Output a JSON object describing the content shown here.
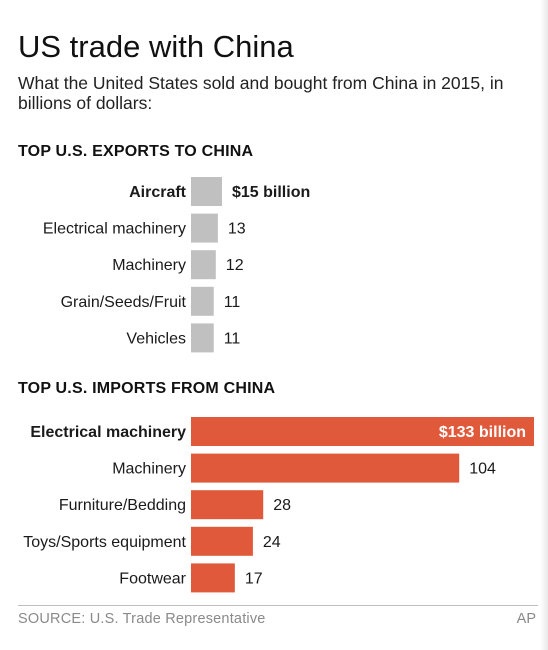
{
  "title": "US trade with China",
  "subtitle": "What the United States sold and bought from China in 2015, in billions of dollars:",
  "source": "SOURCE: U.S. Trade Representative",
  "credit": "AP",
  "chart_data": [
    {
      "type": "bar",
      "orientation": "horizontal",
      "title": "TOP U.S. EXPORTS TO CHINA",
      "categories": [
        "Aircraft",
        "Electrical machinery",
        "Machinery",
        "Grain/Seeds/Fruit",
        "Vehicles"
      ],
      "values": [
        15,
        13,
        12,
        11,
        11
      ],
      "value_labels": [
        "$15 billion",
        "13",
        "12",
        "11",
        "11"
      ],
      "unit": "billions of dollars",
      "color": "#c0c0c0",
      "grid": false,
      "highlight_first": true
    },
    {
      "type": "bar",
      "orientation": "horizontal",
      "title": "TOP U.S. IMPORTS FROM CHINA",
      "categories": [
        "Electrical machinery",
        "Machinery",
        "Furniture/Bedding",
        "Toys/Sports equipment",
        "Footwear"
      ],
      "values": [
        133,
        104,
        28,
        24,
        17
      ],
      "value_labels": [
        "$133 billion",
        "104",
        "28",
        "24",
        "17"
      ],
      "unit": "billions of dollars",
      "color": "#e0593a",
      "grid": false,
      "highlight_first": true
    }
  ]
}
